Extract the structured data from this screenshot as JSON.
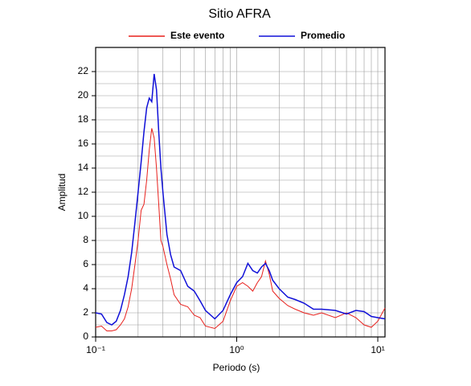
{
  "chart_data": {
    "type": "line",
    "title": "Sitio AFRA",
    "x_label": "Periodo (s)",
    "y_label": "Amplitud",
    "x_scale": "log",
    "x": [
      0.1,
      0.11,
      0.12,
      0.13,
      0.14,
      0.15,
      0.16,
      0.17,
      0.18,
      0.19,
      0.2,
      0.21,
      0.22,
      0.23,
      0.24,
      0.25,
      0.26,
      0.27,
      0.28,
      0.29,
      0.3,
      0.32,
      0.34,
      0.36,
      0.4,
      0.45,
      0.5,
      0.55,
      0.6,
      0.7,
      0.8,
      0.9,
      1.0,
      1.1,
      1.2,
      1.3,
      1.4,
      1.5,
      1.6,
      1.7,
      1.8,
      2.0,
      2.3,
      2.6,
      3.0,
      3.5,
      4,
      5,
      6,
      7,
      8,
      9,
      10,
      11.25
    ],
    "series": [
      {
        "name": "Este evento",
        "color": "#e8201c",
        "values": [
          0.8,
          0.9,
          0.5,
          0.5,
          0.6,
          1.0,
          1.5,
          2.5,
          4,
          6,
          8,
          10.5,
          11,
          13,
          15.5,
          17.3,
          16.5,
          14,
          11,
          8,
          7.5,
          6,
          4.8,
          3.5,
          2.7,
          2.5,
          1.8,
          1.6,
          0.9,
          0.7,
          1.3,
          3.0,
          4.2,
          4.5,
          4.2,
          3.8,
          4.5,
          5.0,
          6.3,
          5.2,
          3.8,
          3.2,
          2.6,
          2.3,
          2.0,
          1.8,
          2.0,
          1.6,
          2.0,
          1.6,
          1.0,
          0.8,
          1.3,
          2.4
        ]
      },
      {
        "name": "Promedio",
        "color": "#1010d8",
        "values": [
          2,
          1.9,
          1.2,
          1.0,
          1.3,
          2.2,
          3.5,
          5,
          7,
          9.5,
          12,
          14.5,
          17,
          19,
          19.8,
          19.5,
          21.8,
          20.5,
          17,
          14,
          12,
          8.5,
          6.8,
          5.8,
          5.5,
          4.2,
          3.8,
          3.0,
          2.2,
          1.5,
          2.2,
          3.5,
          4.5,
          5.0,
          6.1,
          5.5,
          5.3,
          5.8,
          6.1,
          5.5,
          4.7,
          4.0,
          3.3,
          3.1,
          2.8,
          2.3,
          2.3,
          2.2,
          1.9,
          2.2,
          2.1,
          1.7,
          1.6,
          1.5
        ]
      }
    ],
    "xlim": [
      0.1,
      11.25
    ],
    "ylim": [
      0,
      24
    ],
    "xticks": [
      {
        "value": 0.1,
        "label": "10⁻¹"
      },
      {
        "value": 1,
        "label": "10⁰"
      },
      {
        "value": 10,
        "label": "10¹"
      }
    ],
    "yticks": [
      0,
      2,
      4,
      6,
      8,
      10,
      12,
      14,
      16,
      18,
      20,
      22
    ],
    "grid": true,
    "legend": "top"
  }
}
